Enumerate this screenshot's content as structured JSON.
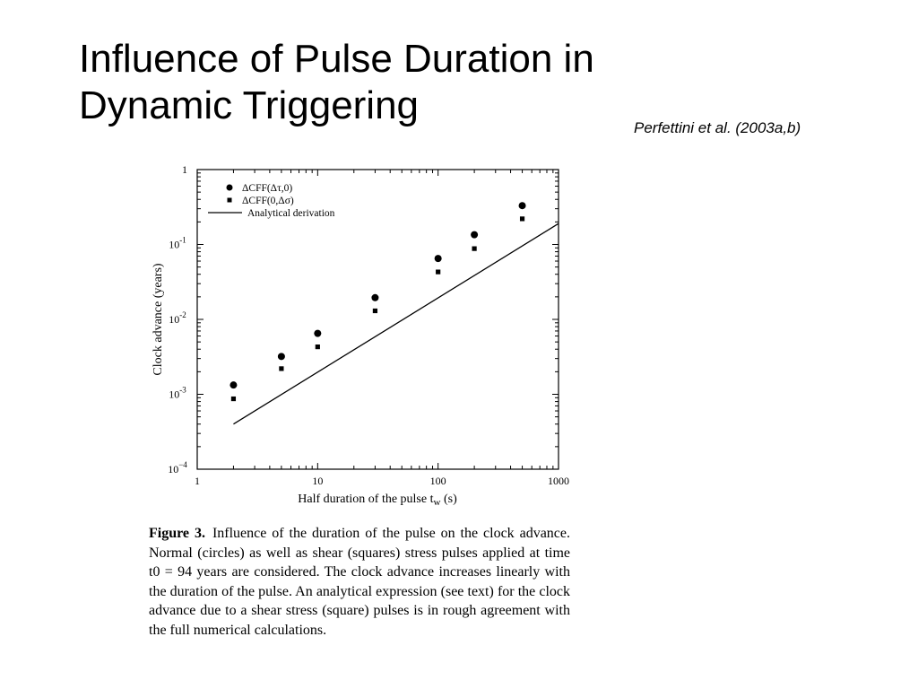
{
  "slide": {
    "title_line1": "Influence of Pulse Duration in",
    "title_line2": "Dynamic Triggering",
    "citation": "Perfettini et al. (2003a,b)"
  },
  "chart_data": {
    "type": "scatter",
    "xlabel": "Half duration of the pulse t",
    "xlabel_sub": "w",
    "xlabel_unit": " (s)",
    "ylabel": "Clock advance (years)",
    "xscale": "log",
    "yscale": "log",
    "xlim": [
      1,
      1000
    ],
    "ylim": [
      0.0001,
      1
    ],
    "x_ticks": [
      {
        "value": 1,
        "label": "1"
      },
      {
        "value": 10,
        "label": "10"
      },
      {
        "value": 100,
        "label": "100"
      },
      {
        "value": 1000,
        "label": "1000"
      }
    ],
    "y_ticks": [
      {
        "value": 0.0001,
        "base": "10",
        "exp": "−4"
      },
      {
        "value": 0.001,
        "base": "10",
        "exp": "-3"
      },
      {
        "value": 0.01,
        "base": "10",
        "exp": "-2"
      },
      {
        "value": 0.1,
        "base": "10",
        "exp": "-1"
      },
      {
        "value": 1,
        "base": "",
        "exp": "",
        "label": "1"
      }
    ],
    "legend_position": "top-left",
    "series": [
      {
        "name": "ΔCFF(Δτ,0)",
        "marker": "circle",
        "x": [
          2,
          5,
          10,
          30,
          100,
          200,
          500
        ],
        "y": [
          0.00133,
          0.0032,
          0.0065,
          0.0195,
          0.065,
          0.135,
          0.33
        ]
      },
      {
        "name": "ΔCFF(0,Δσ)",
        "marker": "square",
        "x": [
          2,
          5,
          10,
          30,
          100,
          200,
          500
        ],
        "y": [
          0.00087,
          0.0022,
          0.0043,
          0.013,
          0.043,
          0.088,
          0.22
        ]
      },
      {
        "name": "Analytical derivation",
        "marker": "line",
        "x": [
          2,
          1000
        ],
        "y": [
          0.0004,
          0.19
        ]
      }
    ]
  },
  "caption": {
    "label": "Figure 3.",
    "text": "Influence of the duration of the pulse on the clock advance. Normal (circles) as well as shear (squares) stress pulses applied at time t0 = 94 years are considered. The clock advance increases linearly with the duration of the pulse. An analytical expression (see text) for the clock advance due to a shear stress (square) pulses is in rough agreement with the full numerical calculations."
  }
}
